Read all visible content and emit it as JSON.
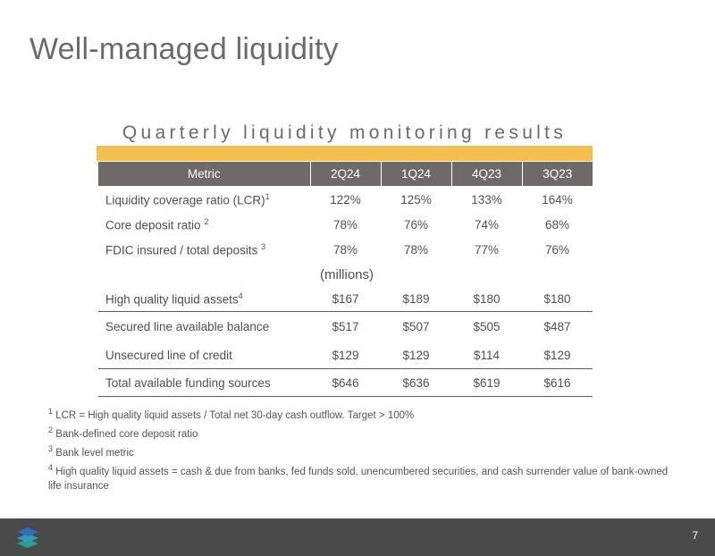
{
  "title": "Well-managed liquidity",
  "section_title": "Quarterly liquidity monitoring results",
  "table": {
    "headers": [
      "Metric",
      "2Q24",
      "1Q24",
      "4Q23",
      "3Q23"
    ],
    "rows": [
      {
        "label": "Liquidity coverage ratio (LCR)",
        "sup": "1",
        "values": [
          "122%",
          "125%",
          "133%",
          "164%"
        ]
      },
      {
        "label": "Core deposit ratio ",
        "sup": "2",
        "values": [
          "78%",
          "76%",
          "74%",
          "68%"
        ]
      },
      {
        "label": "FDIC insured / total deposits ",
        "sup": "3",
        "values": [
          "78%",
          "78%",
          "77%",
          "76%"
        ]
      }
    ],
    "units_label": "(millions)",
    "funding_rows": [
      {
        "label": "High quality liquid assets",
        "sup": "4",
        "values": [
          "$167",
          "$189",
          "$180",
          "$180"
        ]
      },
      {
        "label": "Secured line available balance",
        "sup": "",
        "values": [
          "$517",
          "$507",
          "$505",
          "$487"
        ]
      },
      {
        "label": "Unsecured line of credit",
        "sup": "",
        "values": [
          "$129",
          "$129",
          "$114",
          "$129"
        ]
      },
      {
        "label": "Total available funding sources",
        "sup": "",
        "values": [
          "$646",
          "$636",
          "$619",
          "$616"
        ]
      }
    ]
  },
  "footnotes": [
    {
      "num": "1",
      "text": " LCR = High quality liquid assets / Total net 30-day cash outflow.  Target > 100%"
    },
    {
      "num": "2",
      "text": " Bank-defined core deposit ratio"
    },
    {
      "num": "3",
      "text": " Bank level metric"
    },
    {
      "num": "4",
      "text": " High quality liquid assets = cash & due from banks, fed funds sold, unencumbered securities, and cash surrender value of bank-owned life insurance"
    }
  ],
  "footer": {
    "page_number": "7",
    "logo_icon": "layered-stack-logo-icon"
  },
  "colors": {
    "accent_gold": "#f6bf4d",
    "header_gray": "#6e6a6a",
    "footer_gray": "#4a4a4a",
    "logo_teal": "#2a9d8f",
    "logo_blue": "#2f6fbf"
  }
}
